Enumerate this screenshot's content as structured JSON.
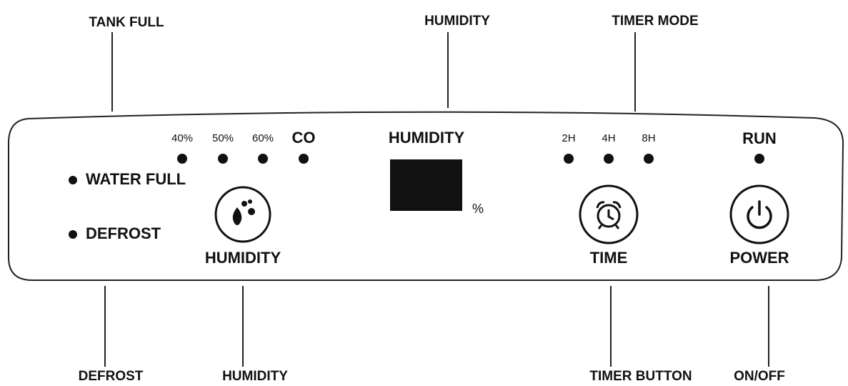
{
  "callouts_top": [
    "TANK FULL",
    "HUMIDITY",
    "TIMER MODE"
  ],
  "callouts_bottom": [
    "DEFROST",
    "HUMIDITY",
    "TIMER BUTTON",
    "ON/OFF"
  ],
  "panel": {
    "humidity_levels": [
      "40%",
      "50%",
      "60%",
      "CO"
    ],
    "indicators": [
      "WATER FULL",
      "DEFROST"
    ],
    "display": {
      "title": "HUMIDITY",
      "unit": "%"
    },
    "timer_options": [
      "2H",
      "4H",
      "8H"
    ],
    "run": "RUN",
    "buttons": [
      "HUMIDITY",
      "TIME",
      "POWER"
    ]
  }
}
